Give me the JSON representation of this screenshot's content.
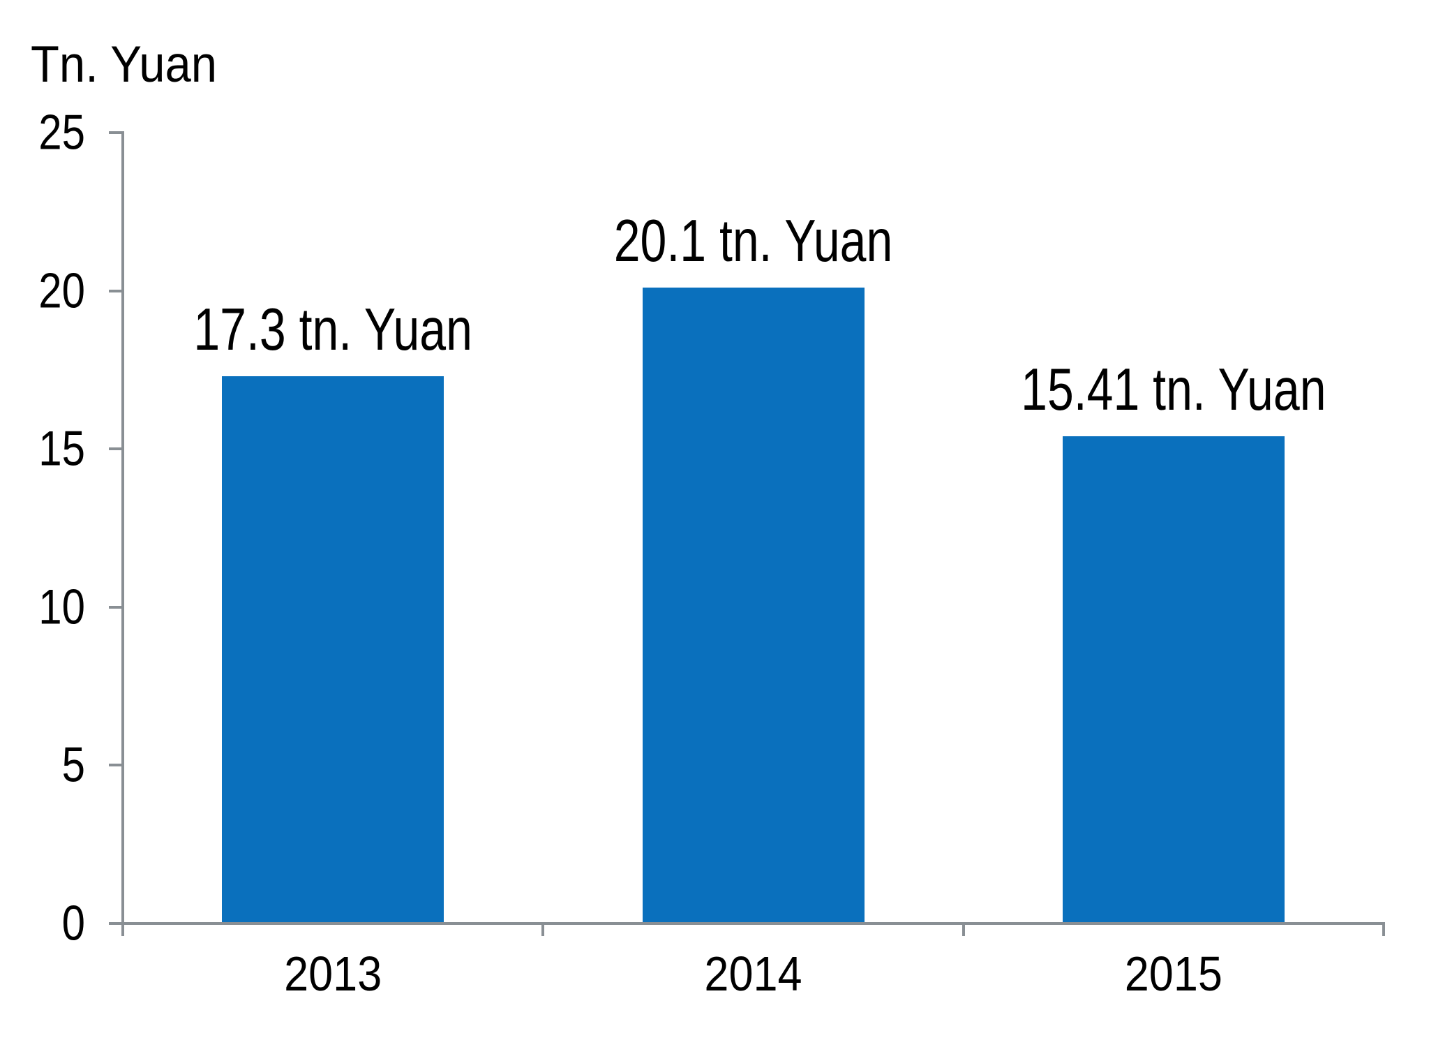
{
  "chart": {
    "y_axis_title": "Tn. Yuan"
  },
  "chart_data": {
    "type": "bar",
    "title": "",
    "ylabel": "Tn. Yuan",
    "xlabel": "",
    "categories": [
      "2013",
      "2014",
      "2015"
    ],
    "values": [
      17.3,
      20.1,
      15.41
    ],
    "data_labels": [
      "17.3 tn. Yuan",
      "20.1 tn. Yuan",
      "15.41 tn. Yuan"
    ],
    "ylim": [
      0,
      25
    ],
    "ytick_interval": 5,
    "y_tick_labels": [
      "25",
      "20",
      "15",
      "10",
      "5",
      "0"
    ],
    "grid": false,
    "legend": false,
    "colors": {
      "bar": "#0a70bd",
      "axis": "#898f94",
      "text": "#000000",
      "background": "#ffffff"
    }
  }
}
